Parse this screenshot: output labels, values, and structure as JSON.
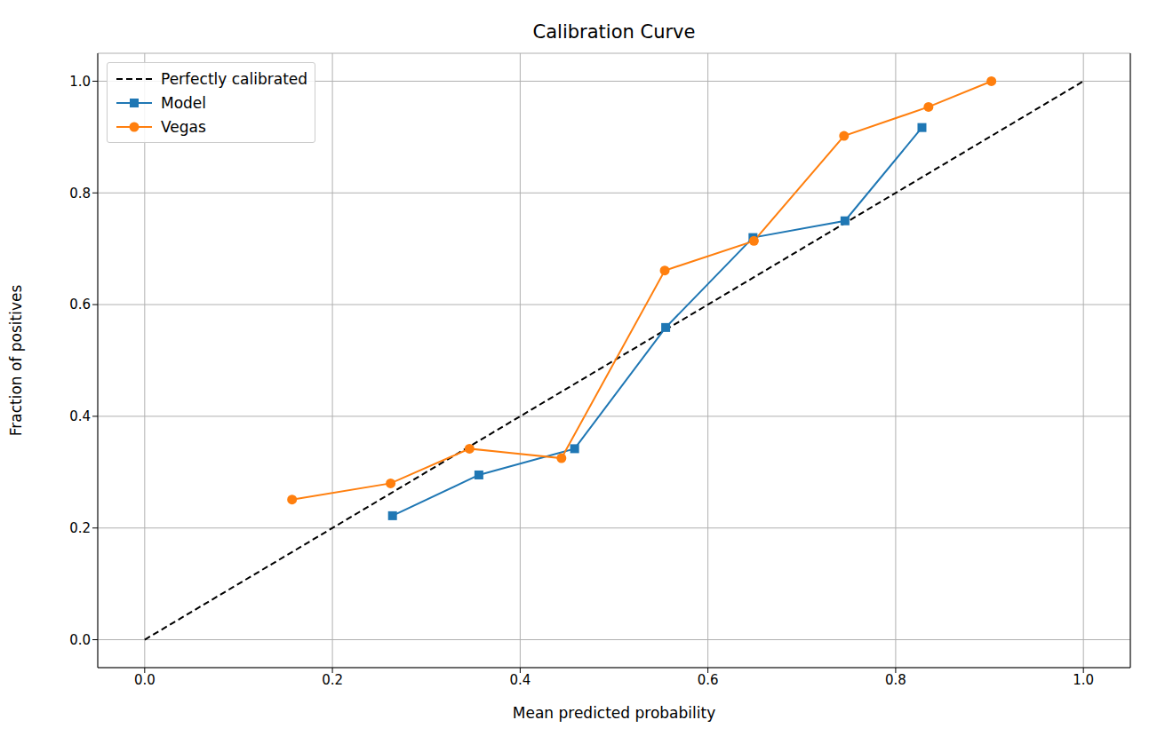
{
  "chart_data": {
    "type": "line",
    "title": "Calibration Curve",
    "x_label": "Mean predicted probability",
    "y_label": "Fraction of positives",
    "xlim": [
      -0.05,
      1.05
    ],
    "ylim": [
      -0.05,
      1.05
    ],
    "xticks": [
      {
        "value": 0,
        "label": "0.0"
      },
      {
        "value": 0.2,
        "label": "0.2"
      },
      {
        "value": 0.4,
        "label": "0.4"
      },
      {
        "value": 0.6,
        "label": "0.6"
      },
      {
        "value": 0.8,
        "label": "0.8"
      },
      {
        "value": 1,
        "label": "1.0"
      }
    ],
    "yticks": [
      {
        "value": 0,
        "label": "0.0"
      },
      {
        "value": 0.2,
        "label": "0.2"
      },
      {
        "value": 0.4,
        "label": "0.4"
      },
      {
        "value": 0.6,
        "label": "0.6"
      },
      {
        "value": 0.8,
        "label": "0.8"
      },
      {
        "value": 1,
        "label": "1.0"
      }
    ],
    "grid": true,
    "legend": "upper left",
    "series": [
      {
        "name": "Perfectly calibrated",
        "color": "#000000",
        "line_style": "dashed",
        "marker": "none",
        "x": [
          0,
          1
        ],
        "values": [
          0,
          1
        ]
      },
      {
        "name": "Model",
        "color": "#1f77b4",
        "line_style": "solid",
        "marker": "square",
        "x": [
          0.264,
          0.356,
          0.458,
          0.555,
          0.648,
          0.746,
          0.828
        ],
        "values": [
          0.222,
          0.295,
          0.342,
          0.559,
          0.72,
          0.75,
          0.917
        ]
      },
      {
        "name": "Vegas",
        "color": "#ff7f0e",
        "line_style": "solid",
        "marker": "circle",
        "x": [
          0.157,
          0.262,
          0.346,
          0.444,
          0.554,
          0.649,
          0.745,
          0.835,
          0.902
        ],
        "values": [
          0.251,
          0.28,
          0.342,
          0.325,
          0.661,
          0.714,
          0.902,
          0.954,
          1.0
        ]
      }
    ]
  }
}
